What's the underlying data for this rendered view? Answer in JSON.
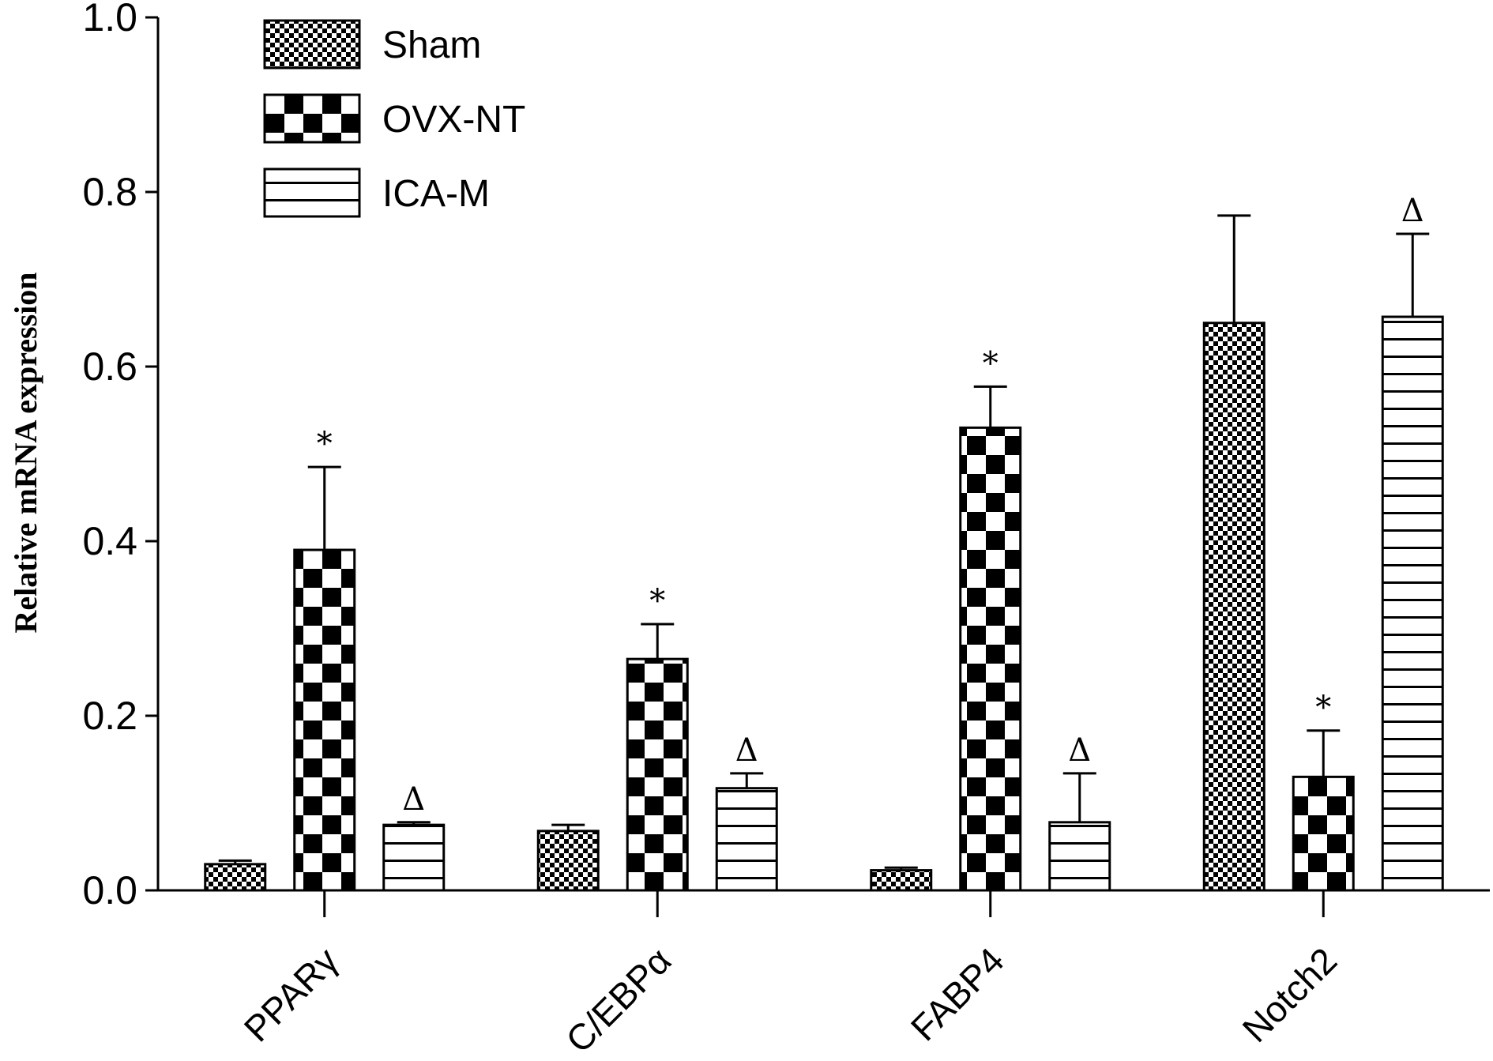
{
  "chart_data": {
    "type": "bar",
    "title": "",
    "xlabel": "",
    "ylabel": "Relative mRNA expression",
    "ylim": [
      0,
      1.0
    ],
    "yticks": [
      "0.0",
      "0.2",
      "0.4",
      "0.6",
      "0.8",
      "1.0"
    ],
    "grid": false,
    "legend_position": "top-left",
    "categories": [
      "PPARγ",
      "C/EBPα",
      "FABP4",
      "Notch2"
    ],
    "series": [
      {
        "name": "Sham",
        "pattern": "fine-checker",
        "values": [
          0.03,
          0.068,
          0.023,
          0.65
        ],
        "errors": [
          0.004,
          0.007,
          0.003,
          0.123
        ],
        "markers": [
          "",
          "",
          "",
          ""
        ]
      },
      {
        "name": "OVX-NT",
        "pattern": "coarse-checker",
        "values": [
          0.39,
          0.265,
          0.53,
          0.13
        ],
        "errors": [
          0.095,
          0.04,
          0.047,
          0.053
        ],
        "markers": [
          "*",
          "*",
          "*",
          "*"
        ]
      },
      {
        "name": "ICA-M",
        "pattern": "horizontal-lines",
        "values": [
          0.075,
          0.117,
          0.078,
          0.657
        ],
        "errors": [
          0.003,
          0.017,
          0.056,
          0.095
        ],
        "markers": [
          "Δ",
          "Δ",
          "Δ",
          "Δ"
        ]
      }
    ]
  }
}
